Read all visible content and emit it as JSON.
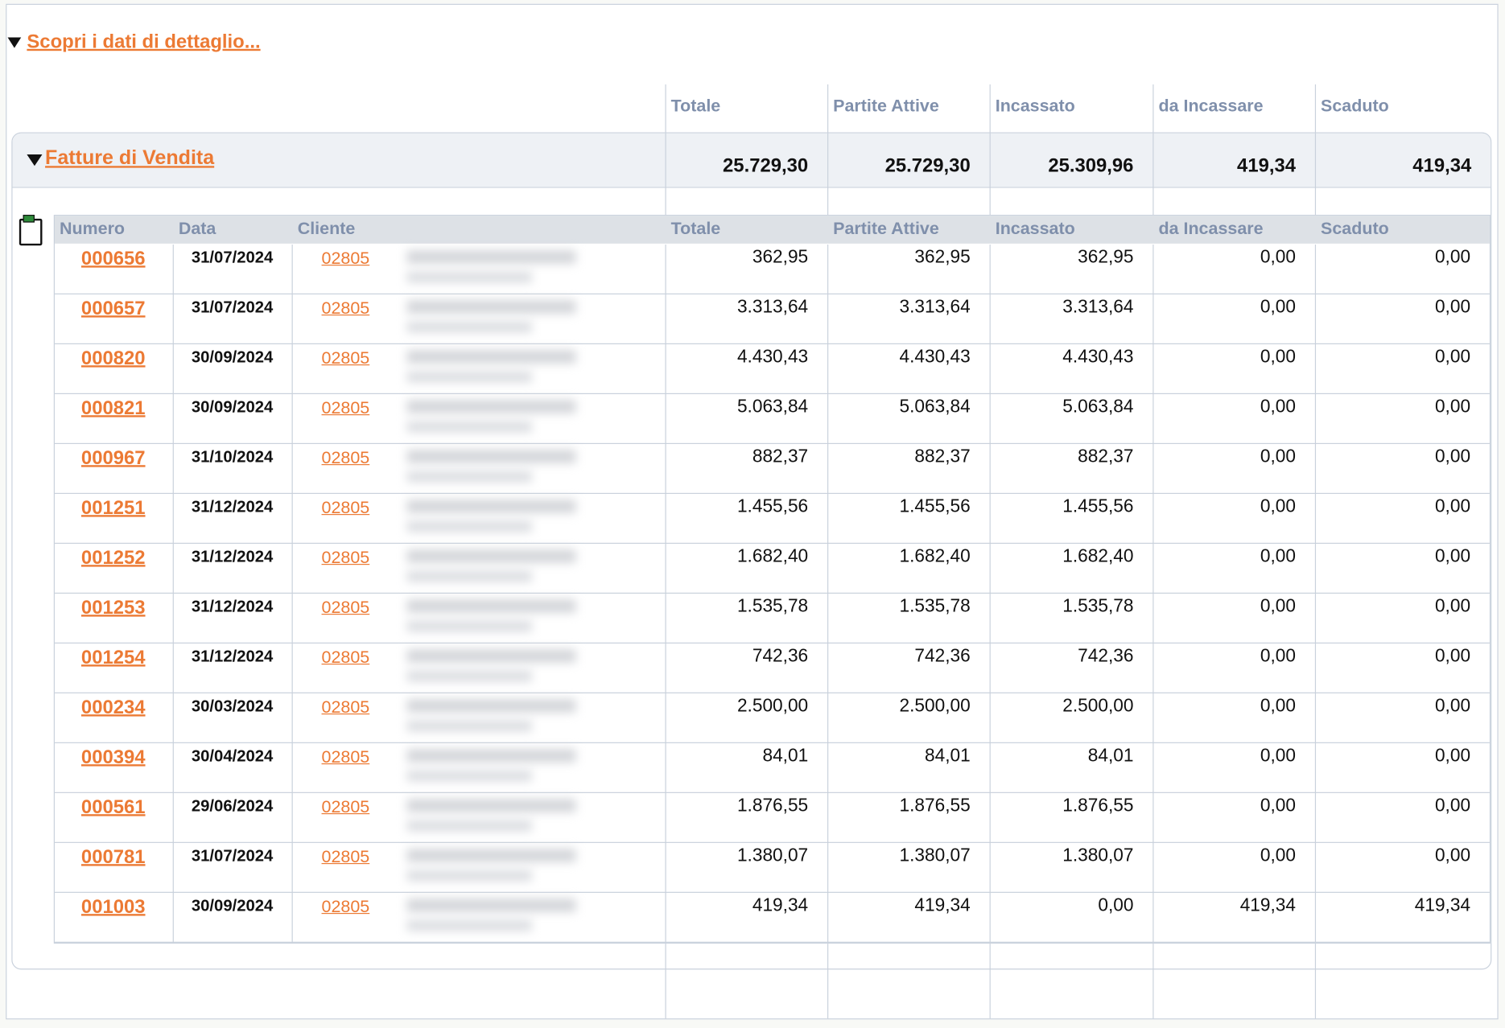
{
  "detail_link": "Scopri i dati di dettaglio...",
  "summary": {
    "columns": [
      "Totale",
      "Partite Attive",
      "Incassato",
      "da Incassare",
      "Scaduto"
    ],
    "section": {
      "title": "Fatture di Vendita",
      "totals": [
        "25.729,30",
        "25.729,30",
        "25.309,96",
        "419,34",
        "419,34"
      ]
    }
  },
  "detail_table": {
    "columns": [
      "Numero",
      "Data",
      "Cliente",
      "Totale",
      "Partite Attive",
      "Incassato",
      "da Incassare",
      "Scaduto"
    ],
    "rows": [
      [
        "000656",
        "31/07/2024",
        "02805",
        "362,95",
        "362,95",
        "362,95",
        "0,00",
        "0,00"
      ],
      [
        "000657",
        "31/07/2024",
        "02805",
        "3.313,64",
        "3.313,64",
        "3.313,64",
        "0,00",
        "0,00"
      ],
      [
        "000820",
        "30/09/2024",
        "02805",
        "4.430,43",
        "4.430,43",
        "4.430,43",
        "0,00",
        "0,00"
      ],
      [
        "000821",
        "30/09/2024",
        "02805",
        "5.063,84",
        "5.063,84",
        "5.063,84",
        "0,00",
        "0,00"
      ],
      [
        "000967",
        "31/10/2024",
        "02805",
        "882,37",
        "882,37",
        "882,37",
        "0,00",
        "0,00"
      ],
      [
        "001251",
        "31/12/2024",
        "02805",
        "1.455,56",
        "1.455,56",
        "1.455,56",
        "0,00",
        "0,00"
      ],
      [
        "001252",
        "31/12/2024",
        "02805",
        "1.682,40",
        "1.682,40",
        "1.682,40",
        "0,00",
        "0,00"
      ],
      [
        "001253",
        "31/12/2024",
        "02805",
        "1.535,78",
        "1.535,78",
        "1.535,78",
        "0,00",
        "0,00"
      ],
      [
        "001254",
        "31/12/2024",
        "02805",
        "742,36",
        "742,36",
        "742,36",
        "0,00",
        "0,00"
      ],
      [
        "000234",
        "30/03/2024",
        "02805",
        "2.500,00",
        "2.500,00",
        "2.500,00",
        "0,00",
        "0,00"
      ],
      [
        "000394",
        "30/04/2024",
        "02805",
        "84,01",
        "84,01",
        "84,01",
        "0,00",
        "0,00"
      ],
      [
        "000561",
        "29/06/2024",
        "02805",
        "1.876,55",
        "1.876,55",
        "1.876,55",
        "0,00",
        "0,00"
      ],
      [
        "000781",
        "31/07/2024",
        "02805",
        "1.380,07",
        "1.380,07",
        "1.380,07",
        "0,00",
        "0,00"
      ],
      [
        "001003",
        "30/09/2024",
        "02805",
        "419,34",
        "419,34",
        "0,00",
        "419,34",
        "419,34"
      ]
    ]
  }
}
